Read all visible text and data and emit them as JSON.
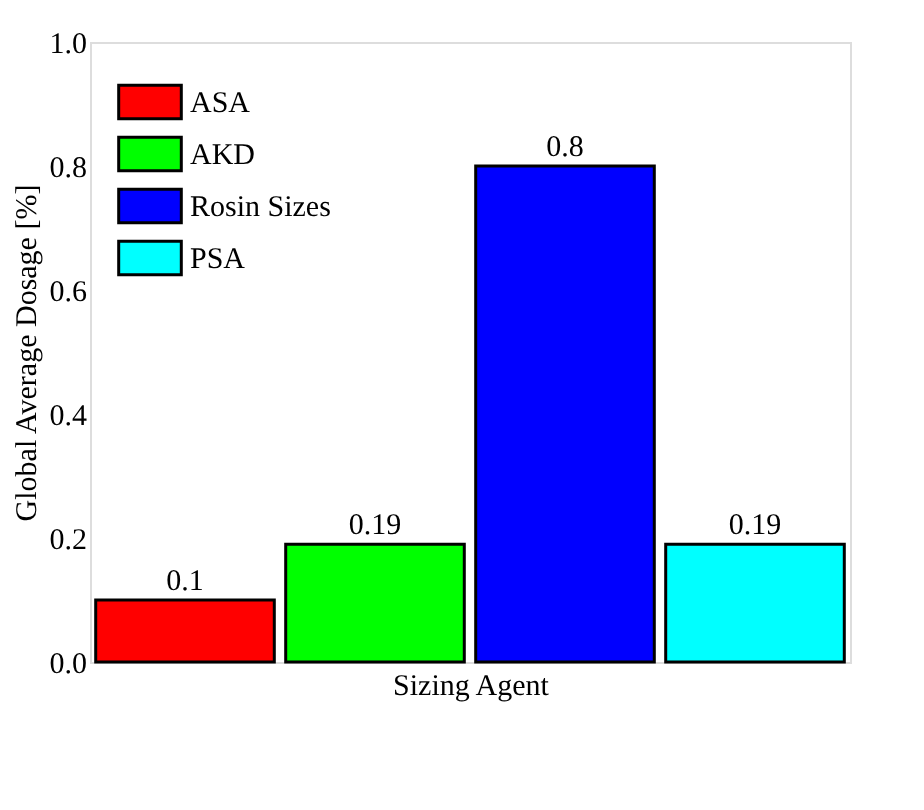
{
  "chart_data": {
    "type": "bar",
    "xlabel": "Sizing Agent",
    "ylabel": "Global Average Dosage [%]",
    "categories": [
      null
    ],
    "series": [
      {
        "name": "ASA",
        "color": "#ff0000",
        "values": [
          0.1
        ]
      },
      {
        "name": "AKD",
        "color": "#00ff00",
        "values": [
          0.19
        ]
      },
      {
        "name": "Rosin Sizes",
        "color": "#0000ff",
        "values": [
          0.8
        ]
      },
      {
        "name": "PSA",
        "color": "#00ffff",
        "values": [
          0.19
        ]
      }
    ],
    "ylim": [
      0,
      1
    ],
    "yticks": [
      {
        "value": 0,
        "label": "0.0"
      },
      0.2,
      0.4,
      0.6,
      0.8,
      {
        "value": 1,
        "label": "1.0"
      }
    ],
    "tick_labels": "y",
    "legend": "top left",
    "data_labels": true
  }
}
